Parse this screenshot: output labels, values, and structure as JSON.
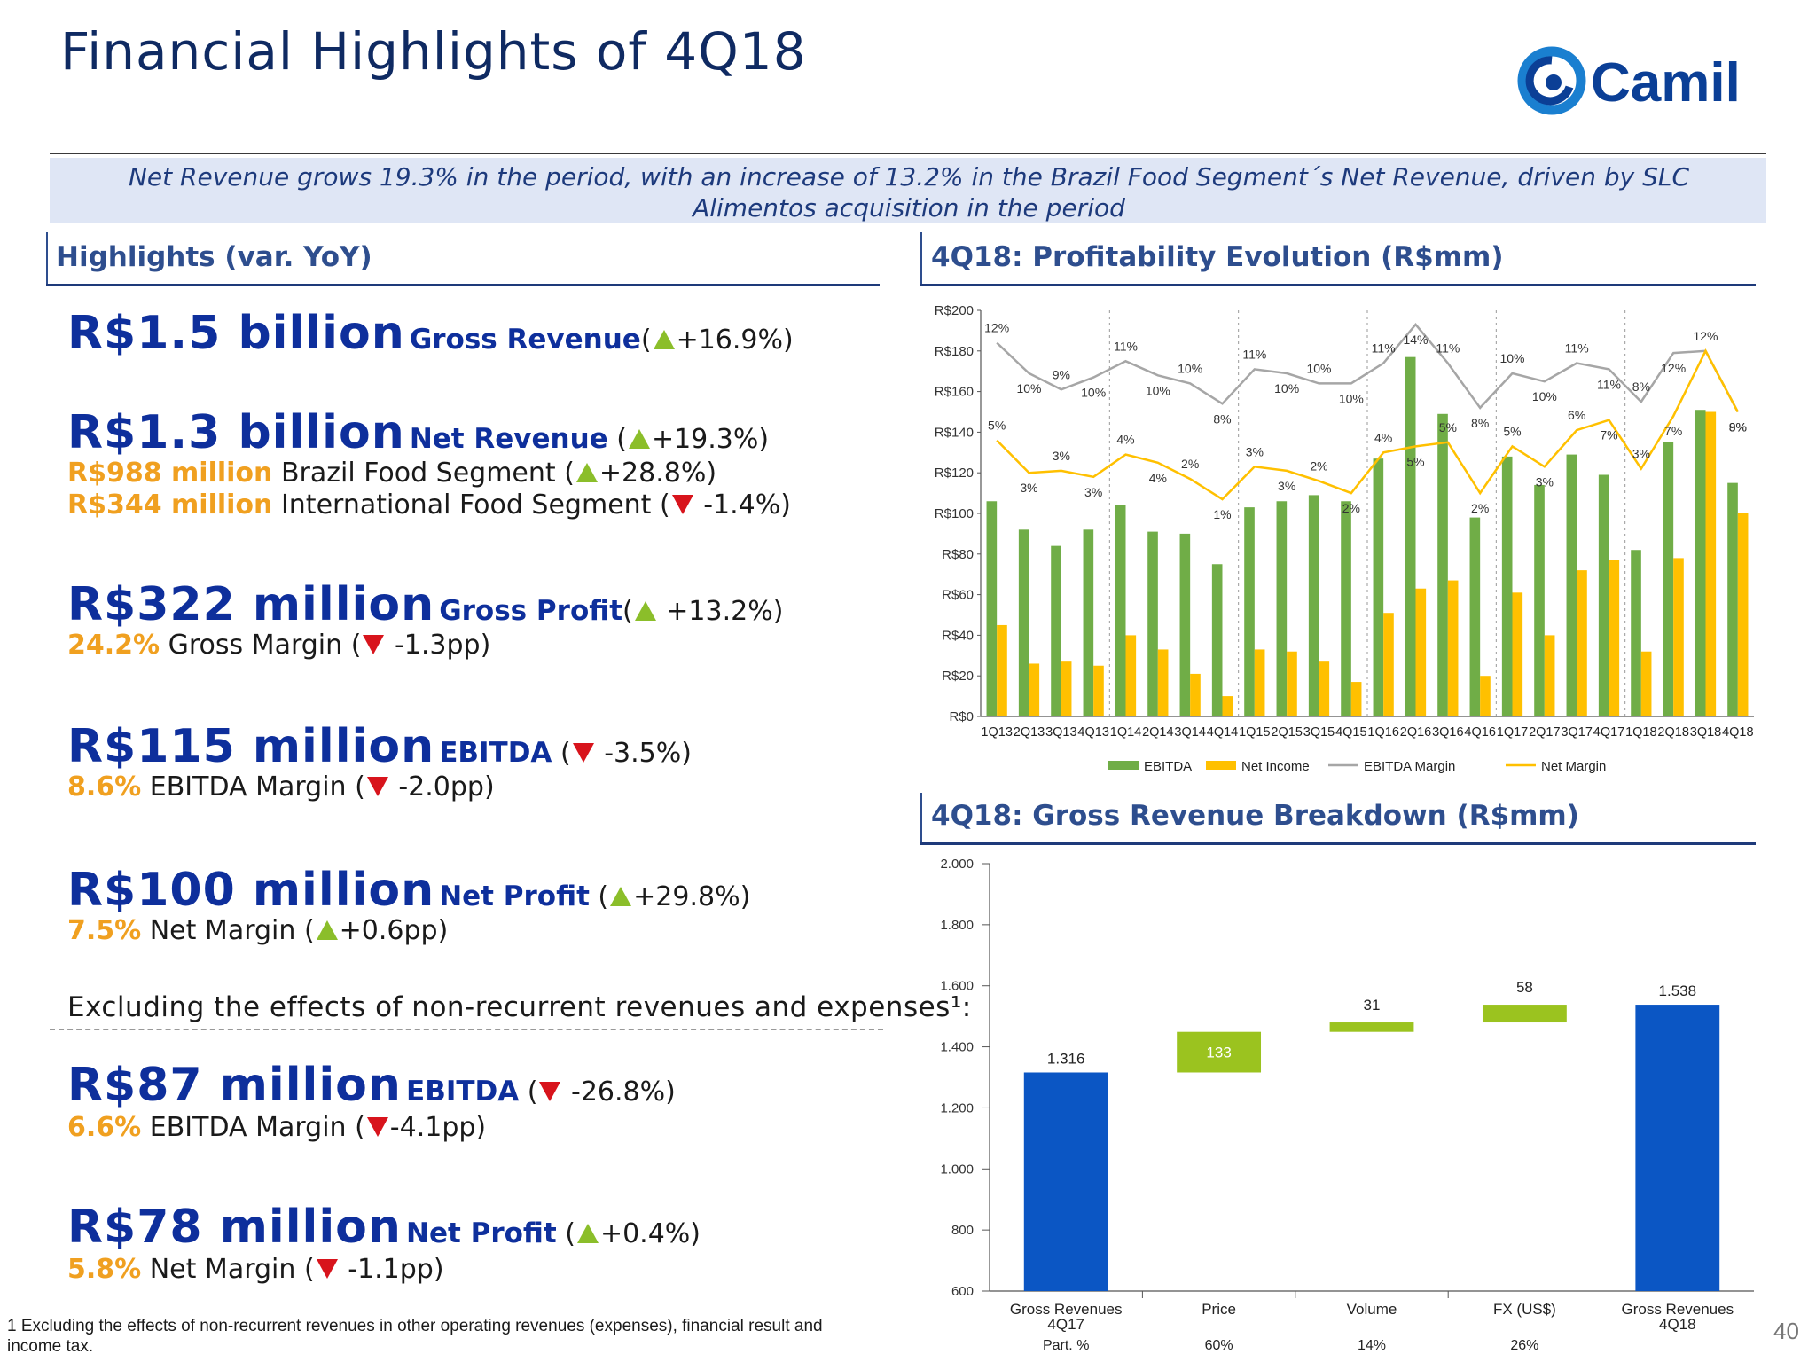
{
  "title": "Financial Highlights of 4Q18",
  "logo_text": "Camil",
  "banner": "Net Revenue grows 19.3% in the period, with an increase of 13.2% in the Brazil Food Segment´s Net Revenue, driven by SLC Alimentos acquisition in the period",
  "highlights": {
    "title": "Highlights (var. YoY)",
    "items": [
      {
        "value": "R$1.5 billion",
        "label": "Gross Revenue",
        "pre": "(",
        "dir": "up",
        "var": "+16.9%)"
      },
      {
        "value": "R$1.3 billion",
        "label": "Net Revenue",
        "pre": " (",
        "dir": "up",
        "var": "+19.3%)",
        "sub": [
          {
            "value": "R$988 million",
            "text": " Brazil Food Segment (",
            "dir": "up",
            "var": "+28.8%)"
          },
          {
            "value": "R$344 million",
            "text": " International Food Segment (",
            "dir": "down",
            "var": " -1.4%)"
          }
        ]
      },
      {
        "value": "R$322 million",
        "label": "Gross Profit",
        "pre": "(",
        "dir": "up",
        "var": " +13.2%)",
        "sub": [
          {
            "value": "24.2%",
            "text": " Gross Margin (",
            "dir": "down",
            "var": " -1.3pp)"
          }
        ]
      },
      {
        "value": "R$115 million",
        "label": "EBITDA",
        "pre": " (",
        "dir": "down",
        "var": " -3.5%)",
        "sub": [
          {
            "value": "8.6%",
            "text": " EBITDA Margin (",
            "dir": "down",
            "var": " -2.0pp)"
          }
        ]
      },
      {
        "value": "R$100 million",
        "label": "Net Profit",
        "pre": " (",
        "dir": "up",
        "var": "+29.8%)",
        "sub": [
          {
            "value": "7.5%",
            "text": " Net Margin (",
            "dir": "up",
            "var": "+0.6pp)"
          }
        ]
      }
    ],
    "exclusion_text": "Excluding the effects of non-recurrent revenues and expenses¹:",
    "adjusted": [
      {
        "value": "R$87 million",
        "label": "EBITDA",
        "pre": " (",
        "dir": "down",
        "var": "   -26.8%)",
        "sub": [
          {
            "value": "6.6%",
            "text": " EBITDA Margin (",
            "dir": "down",
            "var": "-4.1pp)"
          }
        ]
      },
      {
        "value": "R$78 million",
        "label": "Net Profit",
        "pre": " (",
        "dir": "up",
        "var": "+0.4%)",
        "sub": [
          {
            "value": "5.8%",
            "text": " Net Margin (",
            "dir": "down",
            "var": " -1.1pp)"
          }
        ]
      }
    ]
  },
  "footnote": "1 Excluding the effects of non-recurrent revenues in other operating revenues (expenses), financial result and income tax.",
  "page_number": "40",
  "colors": {
    "navy": "#0e2f9c",
    "orange": "#f0a020",
    "up": "#8bbe2a",
    "down": "#d8141c",
    "ebitda": "#70ad47",
    "net_income": "#ffc000",
    "ebitda_margin": "#a6a6a6",
    "net_margin": "#ffc000",
    "blue_bar": "#0b56c4",
    "green_bar": "#9bc31f"
  },
  "chart_data": [
    {
      "type": "bar",
      "title": "4Q18: Profitability Evolution (R$mm)",
      "categories": [
        "1Q13",
        "2Q13",
        "3Q13",
        "4Q13",
        "1Q14",
        "2Q14",
        "3Q14",
        "4Q14",
        "1Q15",
        "2Q15",
        "3Q15",
        "4Q15",
        "1Q16",
        "2Q16",
        "3Q16",
        "4Q16",
        "1Q17",
        "2Q17",
        "3Q17",
        "4Q17",
        "1Q18",
        "2Q18",
        "3Q18",
        "4Q18"
      ],
      "ylim": [
        0,
        200
      ],
      "yticks": [
        "R$0",
        "R$20",
        "R$40",
        "R$60",
        "R$80",
        "R$100",
        "R$120",
        "R$140",
        "R$160",
        "R$180",
        "R$200"
      ],
      "legend_position": "bottom",
      "series": [
        {
          "name": "EBITDA",
          "kind": "bar",
          "values": [
            106,
            92,
            84,
            92,
            104,
            91,
            90,
            75,
            103,
            106,
            109,
            106,
            127,
            177,
            149,
            98,
            128,
            114,
            129,
            119,
            82,
            135,
            151,
            115
          ]
        },
        {
          "name": "Net Income",
          "kind": "bar",
          "values": [
            45,
            26,
            27,
            25,
            40,
            33,
            21,
            10,
            33,
            32,
            27,
            17,
            51,
            63,
            67,
            20,
            61,
            40,
            72,
            77,
            32,
            78,
            150,
            100
          ]
        },
        {
          "name": "EBITDA Margin",
          "kind": "line",
          "values": [
            184,
            169,
            161,
            167,
            175,
            168,
            164,
            154,
            171,
            169,
            164,
            164,
            174,
            193,
            174,
            152,
            169,
            165,
            174,
            171,
            155,
            179,
            180,
            150
          ],
          "labels": [
            "12%",
            "10%",
            "9%",
            "10%",
            "11%",
            "10%",
            "10%",
            "8%",
            "11%",
            "10%",
            "10%",
            "10%",
            "11%",
            "14%",
            "11%",
            "8%",
            "10%",
            "10%",
            "11%",
            "11%",
            "8%",
            "12%",
            "12%",
            "9%"
          ]
        },
        {
          "name": "Net Margin",
          "kind": "line",
          "values": [
            136,
            120,
            121,
            118,
            129,
            125,
            117,
            107,
            123,
            121,
            116,
            110,
            130,
            133,
            135,
            110,
            133,
            123,
            141,
            146,
            122,
            148,
            180,
            150
          ],
          "labels": [
            "5%",
            "3%",
            "3%",
            "3%",
            "4%",
            "4%",
            "2%",
            "1%",
            "3%",
            "3%",
            "2%",
            "2%",
            "4%",
            "5%",
            "5%",
            "2%",
            "5%",
            "3%",
            "6%",
            "7%",
            "3%",
            "7%",
            "",
            "8%"
          ]
        }
      ],
      "separators_after": [
        "4Q13",
        "4Q14",
        "4Q15",
        "4Q16",
        "4Q17"
      ]
    },
    {
      "type": "bar",
      "subtype": "waterfall",
      "title": "4Q18: Gross Revenue Breakdown (R$mm)",
      "ylim": [
        600,
        2000
      ],
      "yticks": [
        "600",
        "800",
        "1.000",
        "1.200",
        "1.400",
        "1.600",
        "1.800",
        "2.000"
      ],
      "categories": [
        "Gross Revenues 4Q17",
        "Price",
        "Volume",
        "FX (US$)",
        "Gross Revenues 4Q18"
      ],
      "category_lines": [
        [
          "Gross Revenues",
          "4Q17"
        ],
        [
          "Price"
        ],
        [
          "Volume"
        ],
        [
          "FX (US$)"
        ],
        [
          "Gross Revenues",
          "4Q18"
        ]
      ],
      "values": [
        1316,
        133,
        31,
        58,
        1538
      ],
      "value_labels": [
        "1.316",
        "133",
        "31",
        "58",
        "1.538"
      ],
      "participation_label": "Part. %",
      "participation": [
        "",
        "60%",
        "14%",
        "26%",
        ""
      ]
    }
  ]
}
